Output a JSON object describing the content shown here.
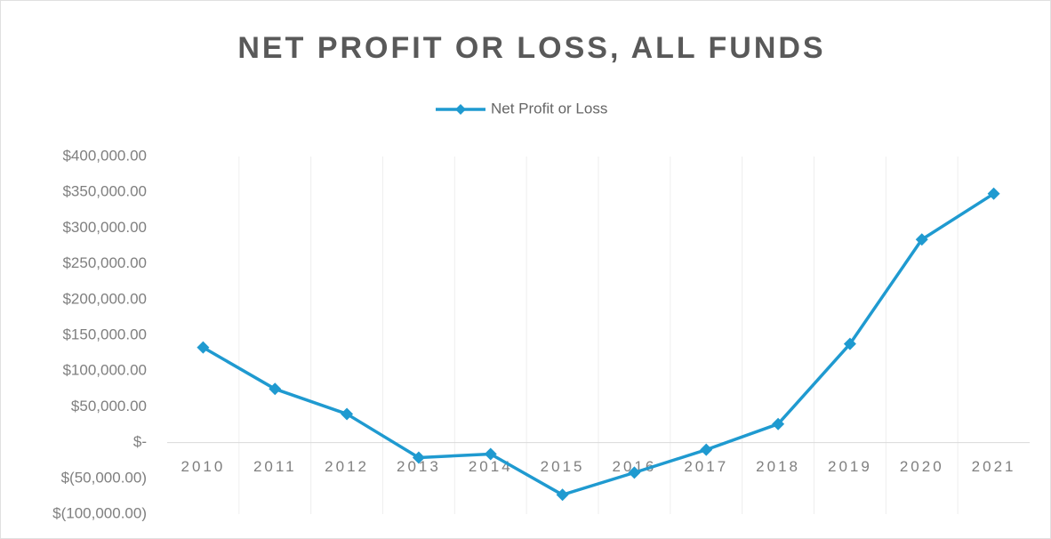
{
  "chart_data": {
    "type": "line",
    "title": "NET PROFIT OR LOSS, ALL FUNDS",
    "categories": [
      "2010",
      "2011",
      "2012",
      "2013",
      "2014",
      "2015",
      "2016",
      "2017",
      "2018",
      "2019",
      "2020",
      "2021"
    ],
    "series": [
      {
        "name": "Net Profit or Loss",
        "color": "#1f9ad0",
        "values": [
          133000,
          75000,
          40000,
          -21000,
          -16000,
          -73000,
          -42000,
          -10000,
          26000,
          138000,
          284000,
          348000
        ]
      }
    ],
    "ylim": [
      -100000,
      400000
    ],
    "yticks": [
      {
        "value": -100000,
        "label": "$(100,000.00)"
      },
      {
        "value": -50000,
        "label": "$(50,000.00)"
      },
      {
        "value": 0,
        "label": "$-"
      },
      {
        "value": 50000,
        "label": "$50,000.00"
      },
      {
        "value": 100000,
        "label": "$100,000.00"
      },
      {
        "value": 150000,
        "label": "$150,000.00"
      },
      {
        "value": 200000,
        "label": "$200,000.00"
      },
      {
        "value": 250000,
        "label": "$250,000.00"
      },
      {
        "value": 300000,
        "label": "$300,000.00"
      },
      {
        "value": 350000,
        "label": "$350,000.00"
      },
      {
        "value": 400000,
        "label": "$400,000.00"
      }
    ],
    "legend": "top"
  }
}
